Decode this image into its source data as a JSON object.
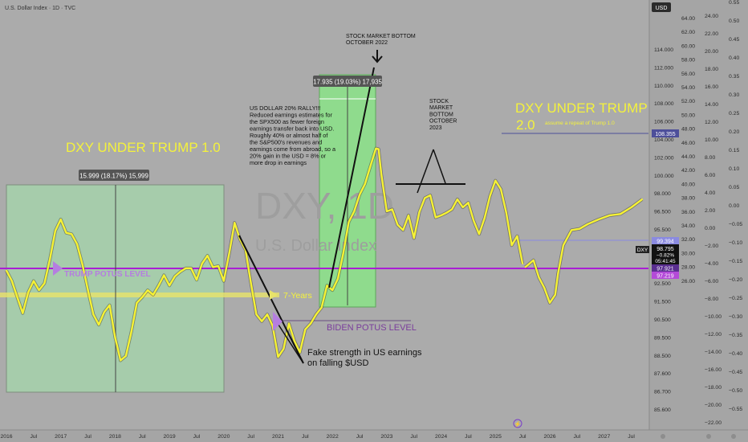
{
  "header": {
    "title": "U.S. Dollar Index · 1D · TVC",
    "currency": "USD"
  },
  "watermark": {
    "symbol": "DXY, 1D",
    "name": "U.S. Dollar Index"
  },
  "price_tags": {
    "p108": "108.355",
    "p99": "99.394",
    "dxy_label": "DXY",
    "dxy_price": "98.795",
    "dxy_change": "−0.82%",
    "dxy_timer": "05:41:45",
    "p97_921": "97.921",
    "p97_219": "97.219"
  },
  "annotations": {
    "trump1": "DXY UNDER TRUMP 1.0",
    "trump2_line1": "DXY UNDER TRUMP",
    "trump2_line2": "2.0",
    "trump2_note": "assume a repeat of Trump 1.0",
    "trump_potus": "TRUMP POTUS LEVEL",
    "biden_potus": "BIDEN POTUS LEVEL",
    "seven_years": "7-Years",
    "fake_strength_1": "Fake strength in US earnings",
    "fake_strength_2": "on falling $USD",
    "stock_bottom_2022_1": "STOCK MARKET BOTTOM",
    "stock_bottom_2022_2": "OCTOBER 2022",
    "stock_bottom_2023": [
      "STOCK",
      "MARKET",
      "BOTTOM",
      "OCTOBER",
      "2023"
    ],
    "rally_text": [
      "US DOLLAR 20% RALLY!!!",
      "Reduced earnings estimates for",
      "the SPX500 as fewer foreign",
      "earnings transfer back into USD.",
      "Roughly 40% or almost half of",
      "the S&P500's revenues and",
      "earnings come from abroad, so a",
      "20% gain in the USD = 8% or",
      "more drop in earnings"
    ],
    "measure_2017": "15.999 (18.17%) 15,999",
    "measure_2022": "17.935 (19.03%) 17,935"
  },
  "chart_data": {
    "type": "line",
    "title": "U.S. Dollar Index · 1D · TVC",
    "x_ticks": [
      "2016",
      "Jul",
      "2017",
      "Jul",
      "2018",
      "Jul",
      "2019",
      "Jul",
      "2020",
      "Jul",
      "2021",
      "Jul",
      "2022",
      "Jul",
      "2023",
      "Jul",
      "2024",
      "Jul",
      "2025",
      "Jul",
      "2026",
      "Jul",
      "2027",
      "Jul"
    ],
    "y_axis_1": [
      "114.000",
      "112.000",
      "110.000",
      "108.000",
      "106.000",
      "104.000",
      "102.000",
      "100.000",
      "98.000",
      "96.500",
      "95.500",
      "94.500",
      "93.500",
      "92.500",
      "91.500",
      "90.500",
      "89.500",
      "88.500",
      "87.600",
      "86.700",
      "85.600"
    ],
    "y_axis_2": [
      "64.00",
      "62.00",
      "60.00",
      "58.00",
      "56.00",
      "54.00",
      "52.00",
      "50.00",
      "48.00",
      "46.00",
      "44.00",
      "42.00",
      "40.00",
      "38.00",
      "36.00",
      "34.00",
      "32.00",
      "30.00",
      "28.00",
      "26.00"
    ],
    "y_axis_3": [
      "24.00",
      "22.00",
      "20.00",
      "18.00",
      "16.00",
      "14.00",
      "12.00",
      "10.00",
      "8.00",
      "6.00",
      "4.00",
      "2.00",
      "0.00",
      "−2.00",
      "−4.00",
      "−6.00",
      "−8.00",
      "−10.00",
      "−12.00",
      "−14.00",
      "−16.00",
      "−18.00",
      "−20.00",
      "−22.00"
    ],
    "y_axis_4": [
      "0.55",
      "0.50",
      "0.45",
      "0.40",
      "0.35",
      "0.30",
      "0.25",
      "0.20",
      "0.15",
      "0.10",
      "0.05",
      "0.00",
      "−0.05",
      "−0.10",
      "−0.15",
      "−0.20",
      "−0.25",
      "−0.30",
      "−0.35",
      "−0.40",
      "−0.45",
      "−0.50",
      "−0.55"
    ],
    "ylim": [
      85.6,
      116.0
    ],
    "series": [
      {
        "values": [
          [
            2016.0,
            97.3
          ],
          [
            2016.1,
            96.4
          ],
          [
            2016.2,
            95.0
          ],
          [
            2016.3,
            93.6
          ],
          [
            2016.4,
            95.4
          ],
          [
            2016.5,
            96.4
          ],
          [
            2016.6,
            95.6
          ],
          [
            2016.7,
            96.2
          ],
          [
            2016.8,
            98.3
          ],
          [
            2016.9,
            101.3
          ],
          [
            2017.0,
            103.0
          ],
          [
            2017.1,
            101.0
          ],
          [
            2017.2,
            100.8
          ],
          [
            2017.3,
            99.6
          ],
          [
            2017.4,
            97.8
          ],
          [
            2017.5,
            95.6
          ],
          [
            2017.6,
            93.5
          ],
          [
            2017.7,
            92.6
          ],
          [
            2017.8,
            93.7
          ],
          [
            2017.9,
            94.3
          ],
          [
            2018.0,
            91.5
          ],
          [
            2018.1,
            89.5
          ],
          [
            2018.2,
            89.9
          ],
          [
            2018.3,
            92.0
          ],
          [
            2018.4,
            94.5
          ],
          [
            2018.5,
            95.0
          ],
          [
            2018.6,
            95.6
          ],
          [
            2018.7,
            95.2
          ],
          [
            2018.8,
            96.0
          ],
          [
            2018.9,
            96.9
          ],
          [
            2019.0,
            96.0
          ],
          [
            2019.1,
            96.8
          ],
          [
            2019.2,
            97.2
          ],
          [
            2019.3,
            97.5
          ],
          [
            2019.4,
            97.5
          ],
          [
            2019.5,
            96.5
          ],
          [
            2019.6,
            97.9
          ],
          [
            2019.7,
            98.6
          ],
          [
            2019.8,
            97.6
          ],
          [
            2019.9,
            97.7
          ],
          [
            2020.0,
            96.4
          ],
          [
            2020.1,
            98.8
          ],
          [
            2020.2,
            102.5
          ],
          [
            2020.3,
            100.0
          ],
          [
            2020.4,
            99.1
          ],
          [
            2020.5,
            96.2
          ],
          [
            2020.6,
            93.5
          ],
          [
            2020.7,
            92.9
          ],
          [
            2020.8,
            93.5
          ],
          [
            2020.9,
            92.5
          ],
          [
            2021.0,
            89.8
          ],
          [
            2021.1,
            90.5
          ],
          [
            2021.2,
            92.7
          ],
          [
            2021.3,
            91.2
          ],
          [
            2021.4,
            90.2
          ],
          [
            2021.5,
            92.2
          ],
          [
            2021.6,
            92.7
          ],
          [
            2021.7,
            93.5
          ],
          [
            2021.8,
            94.1
          ],
          [
            2021.9,
            96.0
          ],
          [
            2022.0,
            95.6
          ],
          [
            2022.1,
            96.6
          ],
          [
            2022.2,
            98.8
          ],
          [
            2022.3,
            102.6
          ],
          [
            2022.4,
            104.2
          ],
          [
            2022.5,
            106.7
          ],
          [
            2022.6,
            108.3
          ],
          [
            2022.7,
            111.0
          ],
          [
            2022.8,
            113.6
          ],
          [
            2022.85,
            113.5
          ],
          [
            2022.9,
            109.8
          ],
          [
            2023.0,
            104.2
          ],
          [
            2023.1,
            104.5
          ],
          [
            2023.2,
            102.2
          ],
          [
            2023.3,
            101.4
          ],
          [
            2023.4,
            103.6
          ],
          [
            2023.5,
            100.2
          ],
          [
            2023.6,
            104.1
          ],
          [
            2023.7,
            106.2
          ],
          [
            2023.8,
            106.6
          ],
          [
            2023.9,
            103.3
          ],
          [
            2024.0,
            103.6
          ],
          [
            2024.1,
            104.0
          ],
          [
            2024.2,
            104.5
          ],
          [
            2024.3,
            106.0
          ],
          [
            2024.4,
            104.8
          ],
          [
            2024.5,
            105.5
          ],
          [
            2024.6,
            102.8
          ],
          [
            2024.7,
            100.8
          ],
          [
            2024.8,
            103.2
          ],
          [
            2024.9,
            106.5
          ],
          [
            2025.0,
            108.8
          ],
          [
            2025.1,
            107.5
          ],
          [
            2025.2,
            104.0
          ],
          [
            2025.3,
            99.5
          ],
          [
            2025.4,
            100.5
          ],
          [
            2025.5,
            97.9
          ]
        ]
      },
      {
        "values": [
          [
            2025.55,
            97.6
          ],
          [
            2025.7,
            98.2
          ],
          [
            2025.8,
            96.7
          ],
          [
            2025.9,
            95.8
          ],
          [
            2026.0,
            94.5
          ],
          [
            2026.1,
            95.2
          ],
          [
            2026.15,
            97.0
          ],
          [
            2026.25,
            99.5
          ],
          [
            2026.4,
            101.4
          ],
          [
            2026.55,
            101.6
          ],
          [
            2026.7,
            102.3
          ],
          [
            2026.9,
            103.0
          ],
          [
            2027.1,
            103.6
          ],
          [
            2027.3,
            103.8
          ],
          [
            2027.5,
            104.8
          ],
          [
            2027.7,
            106.0
          ]
        ]
      }
    ]
  }
}
